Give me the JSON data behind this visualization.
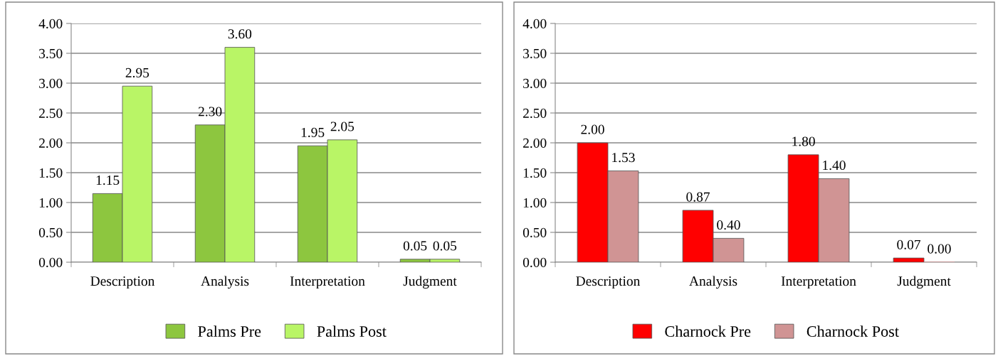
{
  "chart_data": [
    {
      "type": "bar",
      "categories": [
        "Description",
        "Analysis",
        "Interpretation",
        "Judgment"
      ],
      "series": [
        {
          "name": "Palms Pre",
          "color": "#8dc63f",
          "values": [
            1.15,
            2.3,
            1.95,
            0.05
          ],
          "value_labels": [
            "1.15",
            "2.30",
            "1.95",
            "0.05"
          ]
        },
        {
          "name": "Palms Post",
          "color": "#b9f566",
          "values": [
            2.95,
            3.6,
            2.05,
            0.05
          ],
          "value_labels": [
            "2.95",
            "3.60",
            "2.05",
            "0.05"
          ]
        }
      ],
      "ylim": [
        0,
        4
      ],
      "yticks": [
        {
          "value": 0,
          "label": "0.00"
        },
        {
          "value": 0.5,
          "label": "0.50"
        },
        {
          "value": 1,
          "label": "1.00"
        },
        {
          "value": 1.5,
          "label": "1.50"
        },
        {
          "value": 2,
          "label": "2.00"
        },
        {
          "value": 2.5,
          "label": "2.50"
        },
        {
          "value": 3,
          "label": "3.00"
        },
        {
          "value": 3.5,
          "label": "3.50"
        },
        {
          "value": 4,
          "label": "4.00"
        }
      ],
      "grid": "y",
      "legend": "bottom"
    },
    {
      "type": "bar",
      "categories": [
        "Description",
        "Analysis",
        "Interpretation",
        "Judgment"
      ],
      "series": [
        {
          "name": "Charnock Pre",
          "color": "#ff0000",
          "values": [
            2.0,
            0.87,
            1.8,
            0.07
          ],
          "value_labels": [
            "2.00",
            "0.87",
            "1.80",
            "0.07"
          ]
        },
        {
          "name": "Charnock Post",
          "color": "#d09494",
          "values": [
            1.53,
            0.4,
            1.4,
            0.0
          ],
          "value_labels": [
            "1.53",
            "0.40",
            "1.40",
            "0.00"
          ]
        }
      ],
      "ylim": [
        0,
        4
      ],
      "yticks": [
        {
          "value": 0,
          "label": "0.00"
        },
        {
          "value": 0.5,
          "label": "0.50"
        },
        {
          "value": 1,
          "label": "1.00"
        },
        {
          "value": 1.5,
          "label": "1.50"
        },
        {
          "value": 2,
          "label": "2.00"
        },
        {
          "value": 2.5,
          "label": "2.50"
        },
        {
          "value": 3,
          "label": "3.00"
        },
        {
          "value": 3.5,
          "label": "3.50"
        },
        {
          "value": 4,
          "label": "4.00"
        }
      ],
      "grid": "y",
      "legend": "bottom"
    }
  ]
}
